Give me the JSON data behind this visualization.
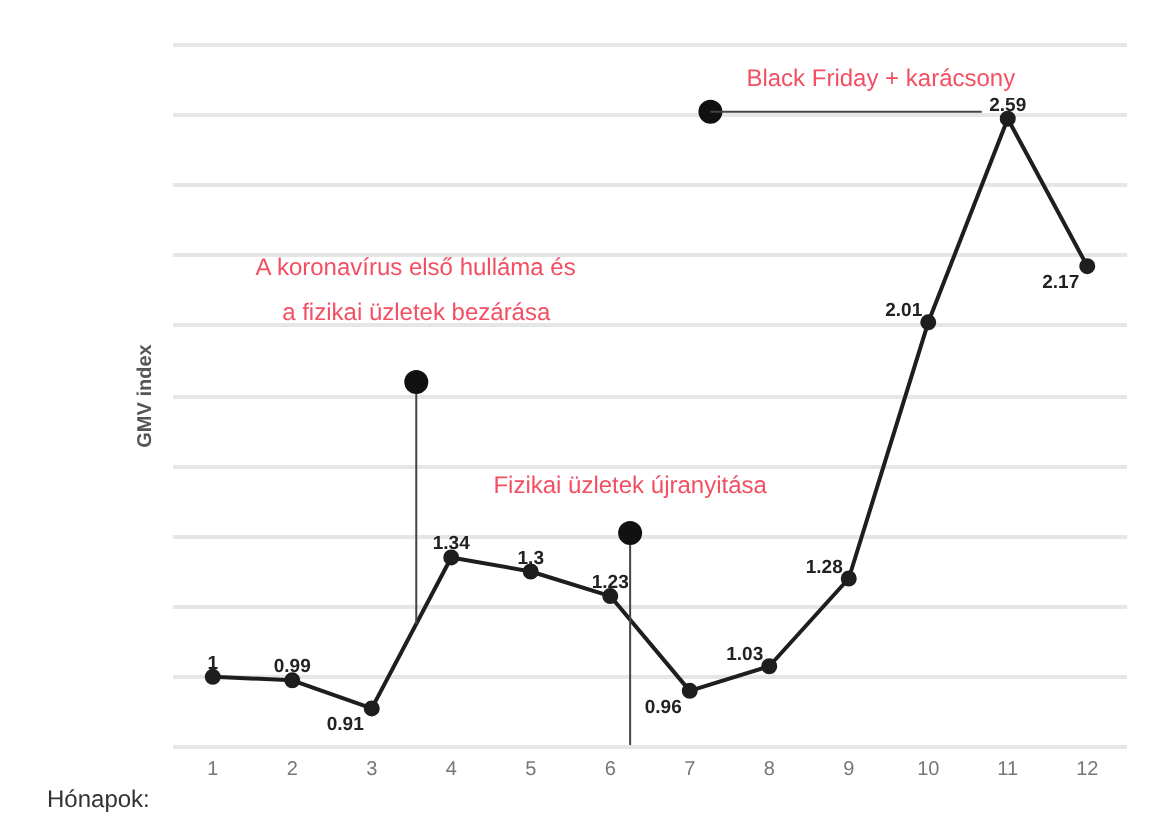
{
  "chart_data": {
    "type": "line",
    "ylabel": "GMV index",
    "xlabel": "Hónapok:",
    "x": [
      1,
      2,
      3,
      4,
      5,
      6,
      7,
      8,
      9,
      10,
      11,
      12
    ],
    "series": [
      {
        "color": "#1e1e1e",
        "values": [
          1,
          0.99,
          0.91,
          1.34,
          1.3,
          1.23,
          0.96,
          1.03,
          1.28,
          2.01,
          2.59,
          2.17
        ]
      }
    ],
    "data_labels": true,
    "marker": "circle",
    "line_style": "solid",
    "xlim": [
      0.5,
      12.5
    ],
    "xticks": [
      1,
      2,
      3,
      4,
      5,
      6,
      7,
      8,
      9,
      10,
      11,
      12
    ],
    "ylim": [
      0.8,
      2.8
    ],
    "yticks": [
      {
        "value": 0.8,
        "label": null
      },
      {
        "value": 1.0,
        "label": null
      },
      {
        "value": 1.2,
        "label": null
      },
      {
        "value": 1.4,
        "label": null
      },
      {
        "value": 1.6,
        "label": null
      },
      {
        "value": 1.8,
        "label": null
      },
      {
        "value": 2.0,
        "label": null
      },
      {
        "value": 2.2,
        "label": null
      },
      {
        "value": 2.4,
        "label": null
      },
      {
        "value": 2.6,
        "label": null
      },
      {
        "value": 2.8,
        "label": null
      }
    ],
    "grid": "y",
    "tick_labels": "x",
    "ref_lines": [
      {
        "axis": "x",
        "value": 3.56,
        "color": "#444444"
      },
      {
        "axis": "x",
        "value": 6.25,
        "color": "#444444"
      }
    ],
    "annotations": [
      {
        "text": "A koronavírus első hulláma és\na fizikai üzletek bezárása",
        "x": 3.56,
        "y": 1.84
      },
      {
        "text": "Fizikai üzletek újranyitása",
        "x": 6.25,
        "y": 1.41
      },
      {
        "text": "Black Friday + karácsony",
        "x": 7.26,
        "y": 2.61
      }
    ]
  }
}
